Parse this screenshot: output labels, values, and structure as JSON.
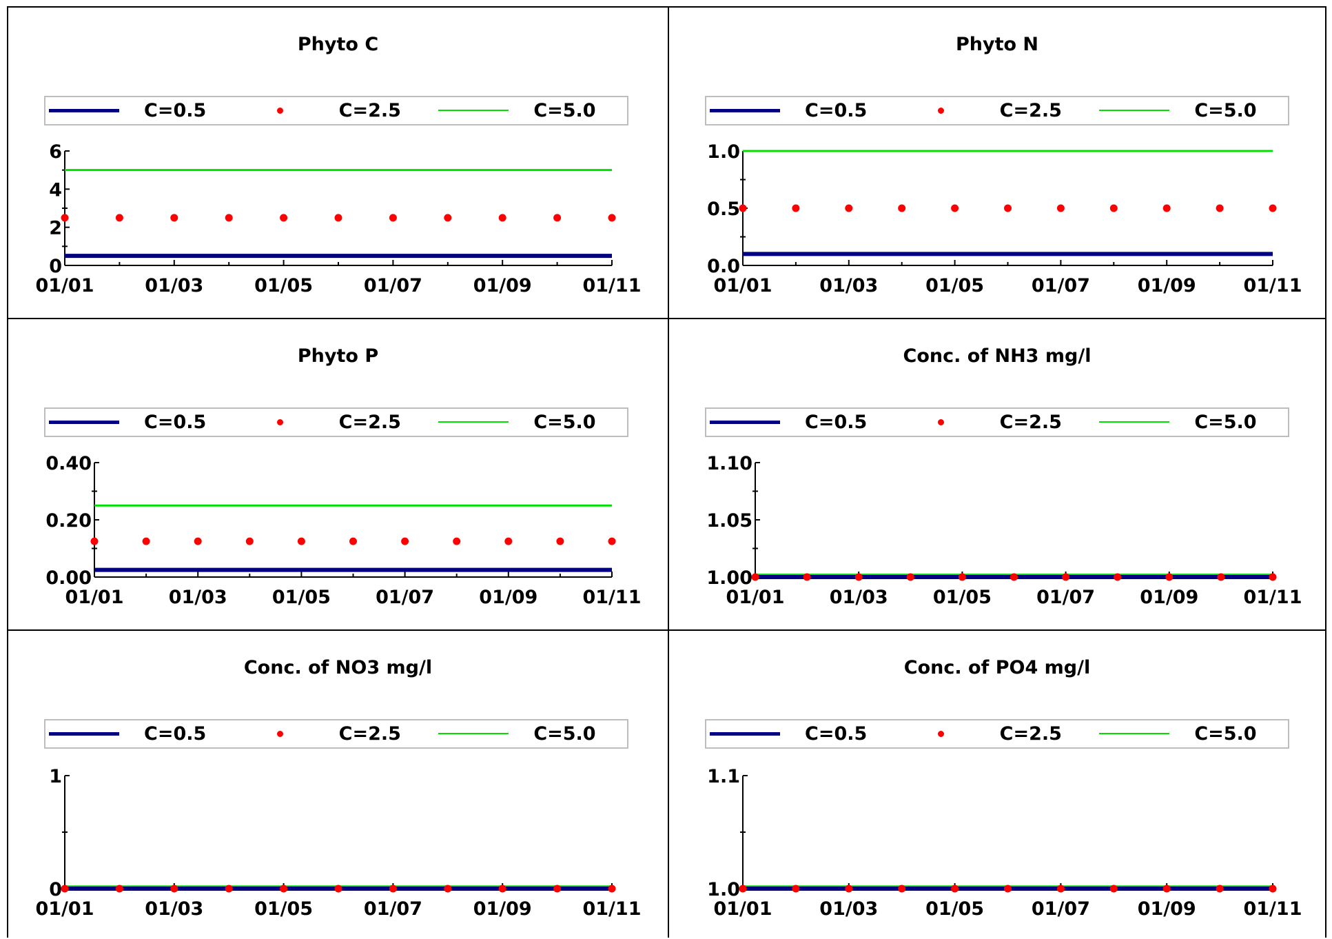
{
  "colors": {
    "c05": "#000080",
    "c25": "#ff0000",
    "c50": "#00e000",
    "frame": "#000000",
    "legend_border": "#bdbdbd"
  },
  "legend": [
    {
      "label": "C=0.5",
      "marker": "thick-line"
    },
    {
      "label": "C=2.5",
      "marker": "dot"
    },
    {
      "label": "C=5.0",
      "marker": "thin-line"
    }
  ],
  "chart_data": [
    {
      "type": "line",
      "title": "Phyto C",
      "x": [
        "01/01",
        "01/02",
        "01/03",
        "01/04",
        "01/05",
        "01/06",
        "01/07",
        "01/08",
        "01/09",
        "01/10",
        "01/11"
      ],
      "x_ticklabels": [
        "01/01",
        "01/03",
        "01/05",
        "01/07",
        "01/09",
        "01/11"
      ],
      "ylim": [
        0,
        6
      ],
      "yticks": [
        "0",
        "2",
        "4",
        "6"
      ],
      "yminor": [
        1,
        3,
        5
      ],
      "series": [
        {
          "name": "C=0.5",
          "values": [
            0.5,
            0.5,
            0.5,
            0.5,
            0.5,
            0.5,
            0.5,
            0.5,
            0.5,
            0.5,
            0.5
          ]
        },
        {
          "name": "C=2.5",
          "values": [
            2.5,
            2.5,
            2.5,
            2.5,
            2.5,
            2.5,
            2.5,
            2.5,
            2.5,
            2.5,
            2.5
          ]
        },
        {
          "name": "C=5.0",
          "values": [
            5,
            5,
            5,
            5,
            5,
            5,
            5,
            5,
            5,
            5,
            5
          ]
        }
      ]
    },
    {
      "type": "line",
      "title": "Phyto N",
      "x": [
        "01/01",
        "01/02",
        "01/03",
        "01/04",
        "01/05",
        "01/06",
        "01/07",
        "01/08",
        "01/09",
        "01/10",
        "01/11"
      ],
      "x_ticklabels": [
        "01/01",
        "01/03",
        "01/05",
        "01/07",
        "01/09",
        "01/11"
      ],
      "ylim": [
        0,
        1.0
      ],
      "yticks": [
        "0.0",
        "0.5",
        "1.0"
      ],
      "yminor": [
        0.25,
        0.75
      ],
      "series": [
        {
          "name": "C=0.5",
          "values": [
            0.1,
            0.1,
            0.1,
            0.1,
            0.1,
            0.1,
            0.1,
            0.1,
            0.1,
            0.1,
            0.1
          ]
        },
        {
          "name": "C=2.5",
          "values": [
            0.5,
            0.5,
            0.5,
            0.5,
            0.5,
            0.5,
            0.5,
            0.5,
            0.5,
            0.5,
            0.5
          ]
        },
        {
          "name": "C=5.0",
          "values": [
            1.0,
            1.0,
            1.0,
            1.0,
            1.0,
            1.0,
            1.0,
            1.0,
            1.0,
            1.0,
            1.0
          ]
        }
      ]
    },
    {
      "type": "line",
      "title": "Phyto P",
      "x": [
        "01/01",
        "01/02",
        "01/03",
        "01/04",
        "01/05",
        "01/06",
        "01/07",
        "01/08",
        "01/09",
        "01/10",
        "01/11"
      ],
      "x_ticklabels": [
        "01/01",
        "01/03",
        "01/05",
        "01/07",
        "01/09",
        "01/11"
      ],
      "ylim": [
        0,
        0.4
      ],
      "yticks": [
        "0.00",
        "0.20",
        "0.40"
      ],
      "yminor": [
        0.1,
        0.3
      ],
      "series": [
        {
          "name": "C=0.5",
          "values": [
            0.025,
            0.025,
            0.025,
            0.025,
            0.025,
            0.025,
            0.025,
            0.025,
            0.025,
            0.025,
            0.025
          ]
        },
        {
          "name": "C=2.5",
          "values": [
            0.125,
            0.125,
            0.125,
            0.125,
            0.125,
            0.125,
            0.125,
            0.125,
            0.125,
            0.125,
            0.125
          ]
        },
        {
          "name": "C=5.0",
          "values": [
            0.25,
            0.25,
            0.25,
            0.25,
            0.25,
            0.25,
            0.25,
            0.25,
            0.25,
            0.25,
            0.25
          ]
        }
      ]
    },
    {
      "type": "line",
      "title": "Conc. of NH3 mg/l",
      "x": [
        "01/01",
        "01/02",
        "01/03",
        "01/04",
        "01/05",
        "01/06",
        "01/07",
        "01/08",
        "01/09",
        "01/10",
        "01/11"
      ],
      "x_ticklabels": [
        "01/01",
        "01/03",
        "01/05",
        "01/07",
        "01/09",
        "01/11"
      ],
      "ylim": [
        1.0,
        1.1
      ],
      "yticks": [
        "1.00",
        "1.05",
        "1.10"
      ],
      "yminor": [
        1.025,
        1.075
      ],
      "series": [
        {
          "name": "C=0.5",
          "values": [
            1.0,
            1.0,
            1.0,
            1.0,
            1.0,
            1.0,
            1.0,
            1.0,
            1.0,
            1.0,
            1.0
          ]
        },
        {
          "name": "C=2.5",
          "values": [
            1.0,
            1.0,
            1.0,
            1.0,
            1.0,
            1.0,
            1.0,
            1.0,
            1.0,
            1.0,
            1.0
          ]
        },
        {
          "name": "C=5.0",
          "values": [
            1.002,
            1.002,
            1.002,
            1.002,
            1.002,
            1.002,
            1.002,
            1.002,
            1.002,
            1.002,
            1.002
          ]
        }
      ]
    },
    {
      "type": "line",
      "title": "Conc. of NO3 mg/l",
      "x": [
        "01/01",
        "01/02",
        "01/03",
        "01/04",
        "01/05",
        "01/06",
        "01/07",
        "01/08",
        "01/09",
        "01/10",
        "01/11"
      ],
      "x_ticklabels": [
        "01/01",
        "01/03",
        "01/05",
        "01/07",
        "01/09",
        "01/11"
      ],
      "ylim": [
        0,
        1
      ],
      "yticks": [
        "0",
        "1"
      ],
      "yminor": [
        0.5
      ],
      "series": [
        {
          "name": "C=0.5",
          "values": [
            0,
            0,
            0,
            0,
            0,
            0,
            0,
            0,
            0,
            0,
            0
          ]
        },
        {
          "name": "C=2.5",
          "values": [
            0,
            0,
            0,
            0,
            0,
            0,
            0,
            0,
            0,
            0,
            0
          ]
        },
        {
          "name": "C=5.0",
          "values": [
            0.02,
            0.02,
            0.02,
            0.02,
            0.02,
            0.02,
            0.02,
            0.02,
            0.02,
            0.02,
            0.02
          ]
        }
      ]
    },
    {
      "type": "line",
      "title": "Conc. of PO4 mg/l",
      "x": [
        "01/01",
        "01/02",
        "01/03",
        "01/04",
        "01/05",
        "01/06",
        "01/07",
        "01/08",
        "01/09",
        "01/10",
        "01/11"
      ],
      "x_ticklabels": [
        "01/01",
        "01/03",
        "01/05",
        "01/07",
        "01/09",
        "01/11"
      ],
      "ylim": [
        1.0,
        1.1
      ],
      "yticks": [
        "1.0",
        "1.1"
      ],
      "yminor": [
        1.05
      ],
      "series": [
        {
          "name": "C=0.5",
          "values": [
            1.0,
            1.0,
            1.0,
            1.0,
            1.0,
            1.0,
            1.0,
            1.0,
            1.0,
            1.0,
            1.0
          ]
        },
        {
          "name": "C=2.5",
          "values": [
            1.0,
            1.0,
            1.0,
            1.0,
            1.0,
            1.0,
            1.0,
            1.0,
            1.0,
            1.0,
            1.0
          ]
        },
        {
          "name": "C=5.0",
          "values": [
            1.002,
            1.002,
            1.002,
            1.002,
            1.002,
            1.002,
            1.002,
            1.002,
            1.002,
            1.002,
            1.002
          ]
        }
      ]
    }
  ]
}
